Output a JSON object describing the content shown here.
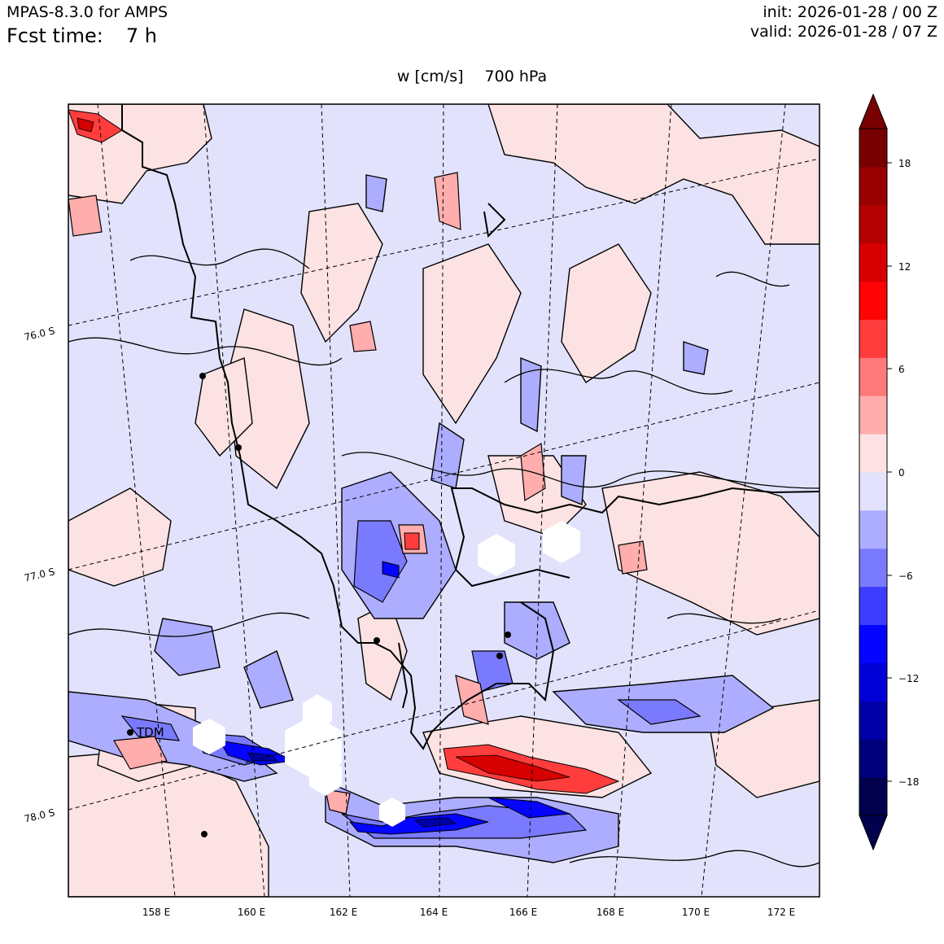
{
  "header": {
    "model": "MPAS-8.3.0 for AMPS",
    "fcst_label": "Fcst time:",
    "fcst_value": "7 h",
    "init": "init: 2026-01-28 / 00 Z",
    "valid": "valid: 2026-01-28 / 07 Z"
  },
  "map": {
    "variable": "w [cm/s]",
    "level": "700 hPa",
    "lon_ticks": [
      "158 E",
      "160 E",
      "162 E",
      "164 E",
      "166 E",
      "168 E",
      "170 E",
      "172 E"
    ],
    "lat_ticks": [
      "76.0 S",
      "77.0 S",
      "78.0 S"
    ],
    "station_label": "TDM",
    "grid_style": "dashed",
    "background_color": "#e2e2fc"
  },
  "colorbar": {
    "ticks": [
      "18",
      "12",
      "6",
      "0",
      "−6",
      "−12",
      "−18"
    ],
    "colors": [
      "#00004c",
      "#00007a",
      "#0000a8",
      "#0000d6",
      "#0404ff",
      "#3d3dff",
      "#7a7aff",
      "#adadff",
      "#e2e2fc",
      "#fce2e2",
      "#ffadad",
      "#ff7a7a",
      "#ff3d3d",
      "#ff0404",
      "#d60000",
      "#b30000",
      "#990000",
      "#780000"
    ],
    "extend": "both",
    "under_color": "#00004c",
    "over_color": "#780000"
  }
}
